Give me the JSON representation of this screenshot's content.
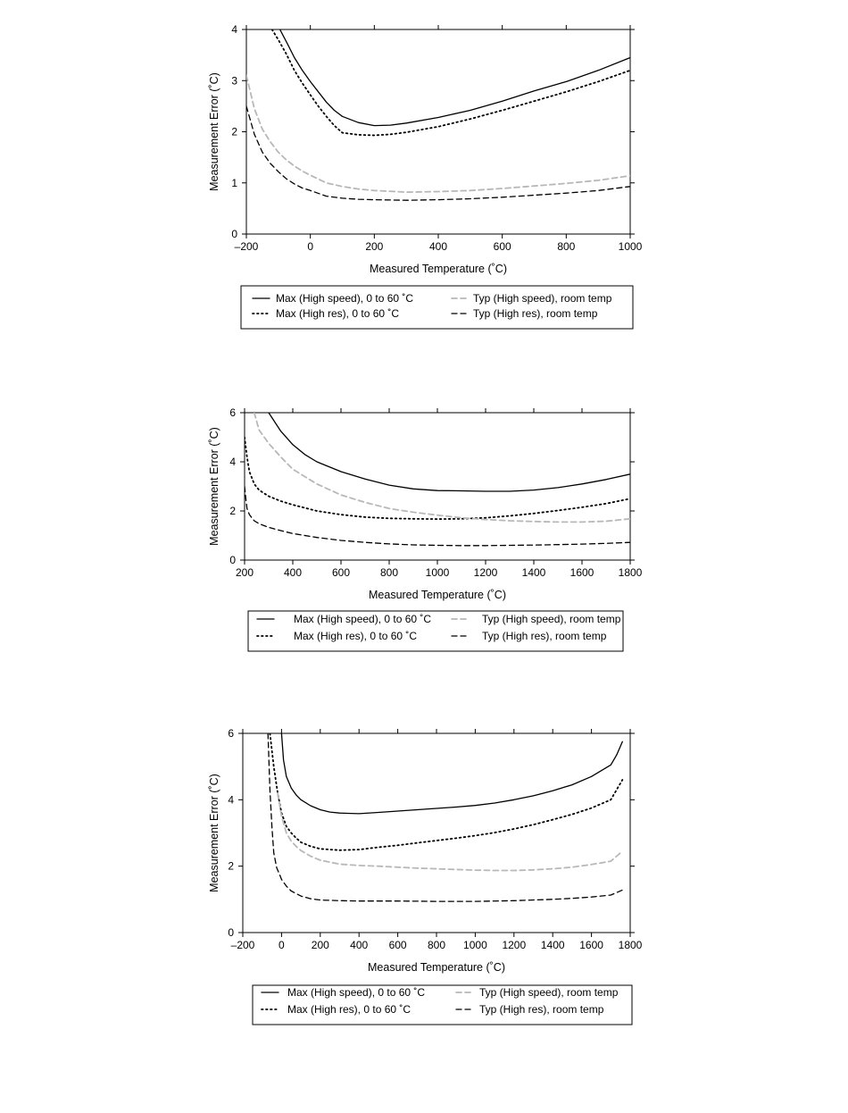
{
  "chart_data": [
    {
      "type": "line",
      "xlabel": "Measured Temperature (˚C)",
      "ylabel": "Measurement Error (˚C)",
      "xlim": [
        -200,
        1000
      ],
      "ylim": [
        0,
        4
      ],
      "xticks": [
        -200,
        0,
        200,
        400,
        600,
        800,
        1000
      ],
      "xtick_labels": [
        "–200",
        "0",
        "200",
        "400",
        "600",
        "800",
        "1000"
      ],
      "yticks": [
        0,
        1,
        2,
        3,
        4
      ],
      "ytick_labels": [
        "0",
        "1",
        "2",
        "3",
        "4"
      ],
      "grid": false,
      "legend": "below",
      "series": [
        {
          "name": "Max (High speed), 0 to 60 ˚C",
          "style": "solid",
          "color": "#000000",
          "x": [
            -95,
            -70,
            -50,
            -25,
            0,
            25,
            50,
            75,
            100,
            150,
            200,
            250,
            300,
            400,
            500,
            600,
            700,
            800,
            900,
            1000
          ],
          "y": [
            4.0,
            3.7,
            3.45,
            3.2,
            2.98,
            2.78,
            2.58,
            2.42,
            2.3,
            2.18,
            2.12,
            2.13,
            2.17,
            2.28,
            2.42,
            2.6,
            2.8,
            2.98,
            3.2,
            3.45
          ]
        },
        {
          "name": "Max (High res), 0 to 60 ˚C",
          "style": "dotted",
          "color": "#000000",
          "x": [
            -120,
            -100,
            -75,
            -50,
            -25,
            0,
            25,
            50,
            75,
            100,
            150,
            200,
            250,
            300,
            400,
            500,
            600,
            700,
            800,
            900,
            1000
          ],
          "y": [
            4.0,
            3.8,
            3.52,
            3.2,
            2.95,
            2.72,
            2.5,
            2.3,
            2.12,
            1.98,
            1.94,
            1.93,
            1.95,
            1.99,
            2.1,
            2.25,
            2.42,
            2.6,
            2.78,
            2.98,
            3.2
          ]
        },
        {
          "name": "Typ (High speed), room temp",
          "style": "dashed",
          "color": "#b8b8b8",
          "x": [
            -200,
            -175,
            -150,
            -125,
            -100,
            -75,
            -50,
            -25,
            0,
            50,
            100,
            150,
            200,
            300,
            400,
            500,
            600,
            700,
            800,
            900,
            1000
          ],
          "y": [
            3.1,
            2.45,
            2.05,
            1.8,
            1.6,
            1.45,
            1.33,
            1.23,
            1.15,
            1.0,
            0.93,
            0.88,
            0.85,
            0.82,
            0.83,
            0.85,
            0.89,
            0.94,
            0.99,
            1.05,
            1.14
          ]
        },
        {
          "name": "Typ (High res), room temp",
          "style": "dashed",
          "color": "#000000",
          "x": [
            -200,
            -175,
            -150,
            -125,
            -100,
            -75,
            -50,
            -25,
            0,
            50,
            100,
            150,
            200,
            300,
            400,
            500,
            600,
            700,
            800,
            900,
            1000
          ],
          "y": [
            2.5,
            1.95,
            1.6,
            1.38,
            1.22,
            1.08,
            0.98,
            0.9,
            0.85,
            0.74,
            0.7,
            0.68,
            0.67,
            0.66,
            0.67,
            0.69,
            0.72,
            0.76,
            0.8,
            0.85,
            0.93
          ]
        }
      ]
    },
    {
      "type": "line",
      "xlabel": "Measured Temperature (˚C)",
      "ylabel": "Measurement Error (˚C)",
      "xlim": [
        200,
        1800
      ],
      "ylim": [
        0,
        6
      ],
      "xticks": [
        200,
        400,
        600,
        800,
        1000,
        1200,
        1400,
        1600,
        1800
      ],
      "xtick_labels": [
        "200",
        "400",
        "600",
        "800",
        "1000",
        "1200",
        "1400",
        "1600",
        "1800"
      ],
      "yticks": [
        0,
        2,
        4,
        6
      ],
      "ytick_labels": [
        "0",
        "2",
        "4",
        "6"
      ],
      "grid": false,
      "legend": "below",
      "series": [
        {
          "name": "Max (High speed), 0 to 60 ˚C",
          "style": "solid",
          "color": "#000000",
          "x": [
            300,
            350,
            400,
            450,
            500,
            600,
            700,
            800,
            900,
            1000,
            1100,
            1200,
            1300,
            1400,
            1500,
            1600,
            1700,
            1800
          ],
          "y": [
            6.0,
            5.25,
            4.7,
            4.3,
            4.0,
            3.6,
            3.3,
            3.05,
            2.9,
            2.83,
            2.82,
            2.8,
            2.8,
            2.85,
            2.95,
            3.1,
            3.28,
            3.5
          ]
        },
        {
          "name": "Max (High res), 0 to 60 ˚C",
          "style": "dotted",
          "color": "#000000",
          "x": [
            200,
            210,
            220,
            240,
            260,
            300,
            350,
            400,
            500,
            600,
            700,
            800,
            900,
            1000,
            1100,
            1200,
            1300,
            1400,
            1500,
            1600,
            1700,
            1800
          ],
          "y": [
            5.0,
            4.2,
            3.6,
            3.1,
            2.85,
            2.6,
            2.4,
            2.25,
            2.0,
            1.85,
            1.75,
            1.7,
            1.68,
            1.67,
            1.68,
            1.72,
            1.8,
            1.9,
            2.02,
            2.15,
            2.3,
            2.5
          ]
        },
        {
          "name": "Typ (High speed), room temp",
          "style": "dashed",
          "color": "#b8b8b8",
          "x": [
            240,
            260,
            300,
            350,
            400,
            500,
            600,
            700,
            800,
            900,
            1000,
            1100,
            1200,
            1300,
            1400,
            1500,
            1600,
            1700,
            1800
          ],
          "y": [
            6.0,
            5.3,
            4.75,
            4.2,
            3.7,
            3.1,
            2.65,
            2.35,
            2.1,
            1.95,
            1.83,
            1.72,
            1.65,
            1.6,
            1.57,
            1.55,
            1.55,
            1.58,
            1.68
          ]
        },
        {
          "name": "Typ (High res), room temp",
          "style": "dashed",
          "color": "#000000",
          "x": [
            200,
            205,
            210,
            220,
            240,
            260,
            300,
            350,
            400,
            500,
            600,
            700,
            800,
            900,
            1000,
            1100,
            1200,
            1300,
            1400,
            1500,
            1600,
            1700,
            1800
          ],
          "y": [
            3.0,
            2.5,
            2.1,
            1.85,
            1.6,
            1.48,
            1.33,
            1.2,
            1.08,
            0.92,
            0.8,
            0.72,
            0.66,
            0.62,
            0.6,
            0.59,
            0.59,
            0.6,
            0.61,
            0.63,
            0.65,
            0.68,
            0.72
          ]
        }
      ]
    },
    {
      "type": "line",
      "xlabel": "Measured Temperature (˚C)",
      "ylabel": "Measurement Error (˚C)",
      "xlim": [
        -200,
        1800
      ],
      "ylim": [
        0,
        6
      ],
      "xticks": [
        -200,
        0,
        200,
        400,
        600,
        800,
        1000,
        1200,
        1400,
        1600,
        1800
      ],
      "xtick_labels": [
        "–200",
        "0",
        "200",
        "400",
        "600",
        "800",
        "1000",
        "1200",
        "1400",
        "1600",
        "1800"
      ],
      "yticks": [
        0,
        2,
        4,
        6
      ],
      "ytick_labels": [
        "0",
        "2",
        "4",
        "6"
      ],
      "grid": false,
      "legend": "below",
      "series": [
        {
          "name": "Max (High speed), 0 to 60 ˚C",
          "style": "solid",
          "color": "#000000",
          "x": [
            0,
            10,
            25,
            50,
            75,
            100,
            150,
            200,
            250,
            300,
            400,
            500,
            600,
            700,
            800,
            900,
            1000,
            1100,
            1200,
            1300,
            1400,
            1500,
            1600,
            1700,
            1730,
            1760
          ],
          "y": [
            6.0,
            5.2,
            4.7,
            4.35,
            4.15,
            4.0,
            3.82,
            3.7,
            3.63,
            3.6,
            3.58,
            3.62,
            3.66,
            3.7,
            3.74,
            3.78,
            3.83,
            3.9,
            4.0,
            4.12,
            4.27,
            4.45,
            4.7,
            5.05,
            5.35,
            5.75
          ]
        },
        {
          "name": "Max (High res), 0 to 60 ˚C",
          "style": "dotted",
          "color": "#000000",
          "x": [
            -60,
            -40,
            -20,
            0,
            25,
            50,
            75,
            100,
            150,
            200,
            300,
            400,
            500,
            600,
            700,
            800,
            900,
            1000,
            1100,
            1200,
            1300,
            1400,
            1500,
            1600,
            1700,
            1760
          ],
          "y": [
            6.0,
            5.0,
            4.2,
            3.6,
            3.2,
            3.0,
            2.85,
            2.72,
            2.6,
            2.52,
            2.48,
            2.5,
            2.57,
            2.63,
            2.7,
            2.77,
            2.84,
            2.92,
            3.01,
            3.12,
            3.25,
            3.4,
            3.56,
            3.75,
            4.0,
            4.6
          ]
        },
        {
          "name": "Typ (High speed), room temp",
          "style": "dashed",
          "color": "#b8b8b8",
          "x": [
            -20,
            0,
            25,
            50,
            75,
            100,
            150,
            200,
            300,
            400,
            500,
            600,
            700,
            800,
            900,
            1000,
            1100,
            1200,
            1300,
            1400,
            1500,
            1600,
            1700,
            1760
          ],
          "y": [
            4.2,
            3.5,
            3.0,
            2.75,
            2.6,
            2.47,
            2.3,
            2.18,
            2.06,
            2.02,
            2.0,
            1.97,
            1.94,
            1.92,
            1.9,
            1.88,
            1.87,
            1.87,
            1.89,
            1.92,
            1.97,
            2.05,
            2.15,
            2.45
          ]
        },
        {
          "name": "Typ (High res), room temp",
          "style": "dashed",
          "color": "#000000",
          "x": [
            -70,
            -60,
            -50,
            -40,
            -25,
            -10,
            0,
            25,
            50,
            100,
            150,
            200,
            300,
            400,
            600,
            800,
            1000,
            1200,
            1400,
            1500,
            1600,
            1700,
            1760
          ],
          "y": [
            6.0,
            4.3,
            3.2,
            2.4,
            1.95,
            1.75,
            1.6,
            1.4,
            1.25,
            1.1,
            1.02,
            0.98,
            0.96,
            0.95,
            0.95,
            0.94,
            0.94,
            0.96,
            1.0,
            1.03,
            1.07,
            1.13,
            1.28
          ]
        }
      ]
    }
  ]
}
